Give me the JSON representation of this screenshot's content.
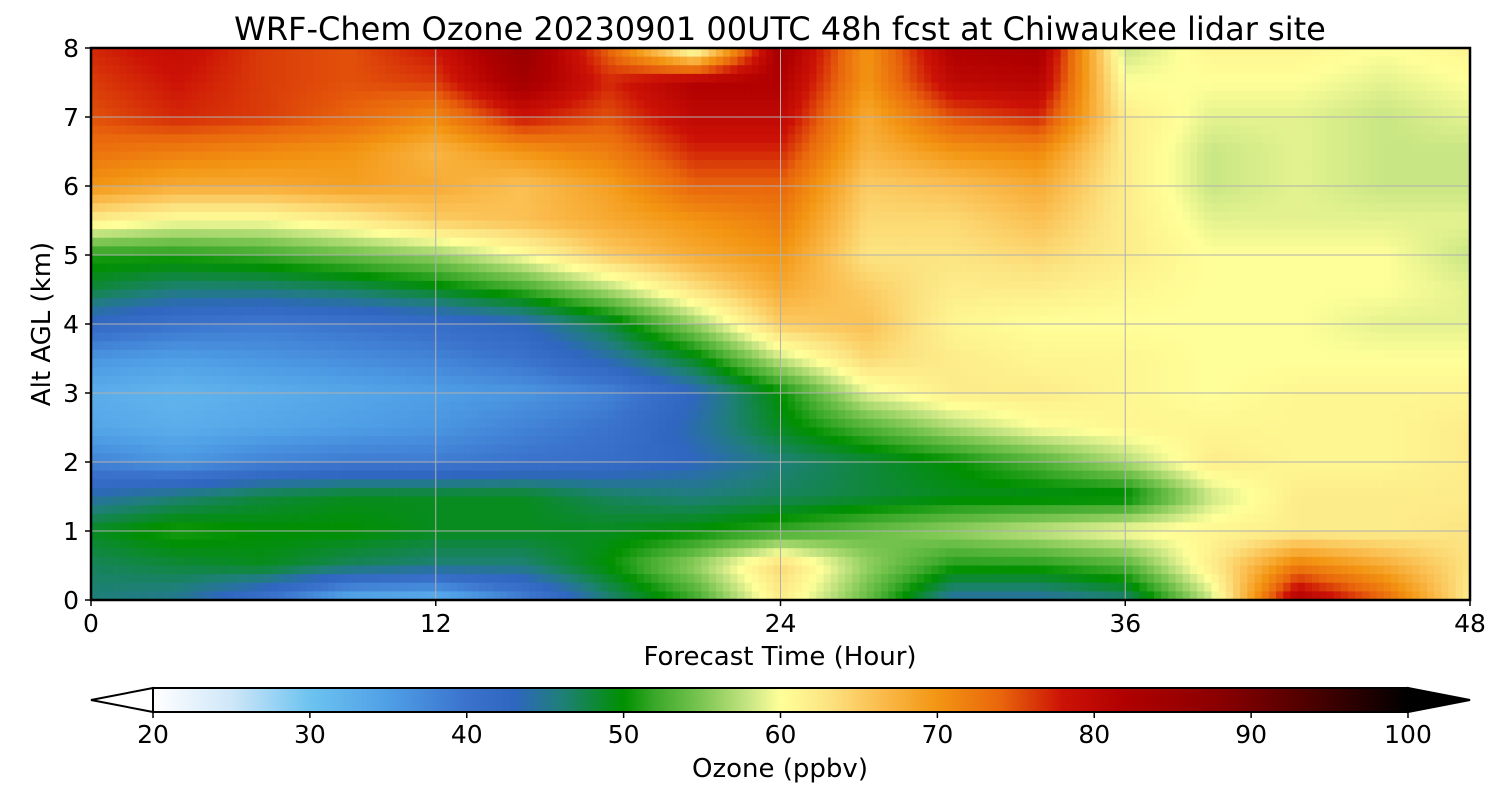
{
  "chart_data": {
    "type": "heatmap",
    "title": "WRF-Chem Ozone  20230901 00UTC 48h fcst at Chiwaukee lidar site",
    "xlabel": "Forecast Time (Hour)",
    "ylabel": "Alt AGL (km)",
    "xlim": [
      0,
      48
    ],
    "ylim": [
      0,
      8
    ],
    "xticks": [
      0,
      12,
      24,
      36,
      48
    ],
    "yticks": [
      0,
      1,
      2,
      3,
      4,
      5,
      6,
      7,
      8
    ],
    "grid": true,
    "x_hours": [
      0,
      3,
      6,
      9,
      12,
      15,
      18,
      21,
      24,
      27,
      30,
      33,
      36,
      39,
      42,
      45,
      48
    ],
    "y_km": [
      0,
      0.5,
      1,
      1.5,
      2,
      2.5,
      3,
      3.5,
      4,
      4.5,
      5,
      5.5,
      6,
      6.5,
      7,
      7.5,
      8
    ],
    "values_ppbv": [
      [
        46,
        45,
        40,
        33,
        32,
        38,
        46,
        52,
        62,
        54,
        44,
        44,
        46,
        58,
        82,
        74,
        62
      ],
      [
        47,
        48,
        49,
        47,
        46,
        46,
        50,
        56,
        64,
        56,
        51,
        51,
        53,
        62,
        72,
        68,
        63
      ],
      [
        49,
        51,
        50,
        50,
        49,
        49,
        49,
        50,
        52,
        54,
        56,
        58,
        60,
        61,
        62,
        62,
        63
      ],
      [
        44,
        46,
        48,
        49,
        49,
        49,
        47,
        46,
        47,
        48,
        49,
        49,
        49,
        58,
        62,
        62,
        62
      ],
      [
        38,
        36,
        38,
        39,
        39,
        40,
        41,
        43,
        46,
        48,
        50,
        53,
        57,
        62,
        61,
        61,
        62
      ],
      [
        34,
        33,
        34,
        35,
        36,
        38,
        40,
        44,
        49,
        53,
        57,
        60,
        61,
        61,
        61,
        61,
        62
      ],
      [
        33,
        32,
        33,
        34,
        35,
        36,
        38,
        43,
        50,
        59,
        62,
        62,
        61,
        60,
        61,
        61,
        61
      ],
      [
        36,
        35,
        36,
        37,
        38,
        40,
        44,
        49,
        58,
        64,
        62,
        61,
        61,
        60,
        60,
        60,
        60
      ],
      [
        42,
        40,
        39,
        40,
        41,
        43,
        48,
        56,
        65,
        66,
        61,
        60,
        60,
        60,
        60,
        59,
        59
      ],
      [
        48,
        46,
        46,
        47,
        49,
        52,
        57,
        63,
        68,
        65,
        62,
        62,
        61,
        60,
        60,
        60,
        59
      ],
      [
        51,
        51,
        52,
        54,
        56,
        60,
        65,
        68,
        70,
        63,
        63,
        64,
        62,
        60,
        60,
        60,
        58
      ],
      [
        62,
        60,
        60,
        62,
        65,
        66,
        68,
        70,
        72,
        64,
        64,
        66,
        62,
        59,
        59,
        59,
        59
      ],
      [
        70,
        68,
        68,
        69,
        68,
        66,
        69,
        74,
        74,
        65,
        66,
        68,
        62,
        58,
        59,
        58,
        58
      ],
      [
        73,
        72,
        71,
        70,
        67,
        70,
        72,
        77,
        77,
        67,
        70,
        71,
        62,
        58,
        59,
        58,
        58
      ],
      [
        75,
        77,
        76,
        74,
        71,
        78,
        75,
        80,
        80,
        68,
        75,
        77,
        62,
        59,
        59,
        58,
        59
      ],
      [
        76,
        78,
        76,
        75,
        76,
        84,
        77,
        82,
        82,
        70,
        80,
        81,
        60,
        60,
        60,
        59,
        60
      ],
      [
        77,
        79,
        76,
        75,
        78,
        86,
        74,
        58,
        84,
        70,
        82,
        83,
        58,
        61,
        61,
        60,
        61
      ]
    ],
    "colorbar": {
      "label": "Ozone  (ppbv)",
      "min": 20,
      "max": 100,
      "ticks": [
        20,
        30,
        40,
        50,
        60,
        70,
        80,
        90,
        100
      ],
      "extend": "both",
      "stops": [
        {
          "v": 20,
          "c": "#ffffff"
        },
        {
          "v": 25,
          "c": "#cfe7f8"
        },
        {
          "v": 30,
          "c": "#6cc3f0"
        },
        {
          "v": 35,
          "c": "#4f9fe6"
        },
        {
          "v": 40,
          "c": "#3a72cc"
        },
        {
          "v": 43,
          "c": "#2f66c0"
        },
        {
          "v": 46,
          "c": "#1f7f7a"
        },
        {
          "v": 50,
          "c": "#009000"
        },
        {
          "v": 52,
          "c": "#3aa82a"
        },
        {
          "v": 55,
          "c": "#7cc652"
        },
        {
          "v": 58,
          "c": "#c8e684"
        },
        {
          "v": 60,
          "c": "#ffff99"
        },
        {
          "v": 63,
          "c": "#fce482"
        },
        {
          "v": 66,
          "c": "#fbc053"
        },
        {
          "v": 70,
          "c": "#f39512"
        },
        {
          "v": 74,
          "c": "#e9660c"
        },
        {
          "v": 78,
          "c": "#cc1206"
        },
        {
          "v": 82,
          "c": "#b00000"
        },
        {
          "v": 88,
          "c": "#8a0000"
        },
        {
          "v": 94,
          "c": "#4a0000"
        },
        {
          "v": 100,
          "c": "#000000"
        }
      ]
    }
  }
}
